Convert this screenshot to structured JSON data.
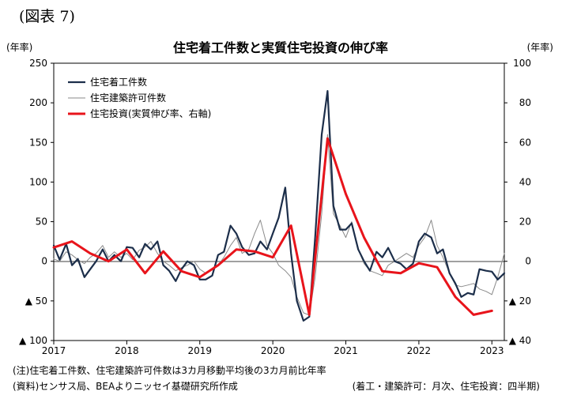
{
  "figure_label": "(図表 7)",
  "notes": {
    "note": "(注)住宅着工件数、住宅建築許可件数は3カ月移動平均後の3カ月前比年率",
    "source": "(資料)センサス局、BEAよりニッセイ基礎研究所作成",
    "frequency": "(着工・建築許可：月次、住宅投資：四半期)"
  },
  "chart_data": {
    "type": "line",
    "title": "住宅着工件数と実質住宅投資の伸び率",
    "y_left": {
      "unit": "(年率)",
      "lim": [
        -100,
        250
      ],
      "ticks": [
        250,
        200,
        150,
        100,
        50,
        0,
        -50,
        -100
      ],
      "tick_labels": [
        "250",
        "200",
        "150",
        "100",
        "50",
        "0",
        "▲ 50",
        "▲ 100"
      ]
    },
    "y_right": {
      "unit": "(年率)",
      "lim": [
        -40,
        100
      ],
      "ticks": [
        100,
        80,
        60,
        40,
        20,
        0,
        -20,
        -40
      ],
      "tick_labels": [
        "100",
        "80",
        "60",
        "40",
        "20",
        "0",
        "▲ 20",
        "▲ 40"
      ]
    },
    "x_ticks": [
      "2017",
      "2018",
      "2019",
      "2020",
      "2021",
      "2022",
      "2023"
    ],
    "x_range": [
      2017,
      2023.17
    ],
    "grid": false,
    "legend_position": "top-left",
    "series": [
      {
        "name": "住宅着工件数",
        "axis": "left",
        "color": "#1c2e4a",
        "width": 2.2,
        "x": [
          2017.0,
          2017.08,
          2017.17,
          2017.25,
          2017.33,
          2017.42,
          2017.5,
          2017.58,
          2017.67,
          2017.75,
          2017.83,
          2017.92,
          2018.0,
          2018.08,
          2018.17,
          2018.25,
          2018.33,
          2018.42,
          2018.5,
          2018.58,
          2018.67,
          2018.75,
          2018.83,
          2018.92,
          2019.0,
          2019.08,
          2019.17,
          2019.25,
          2019.33,
          2019.42,
          2019.5,
          2019.58,
          2019.67,
          2019.75,
          2019.83,
          2019.92,
          2020.0,
          2020.08,
          2020.17,
          2020.25,
          2020.33,
          2020.42,
          2020.5,
          2020.58,
          2020.67,
          2020.75,
          2020.83,
          2020.92,
          2021.0,
          2021.08,
          2021.17,
          2021.25,
          2021.33,
          2021.42,
          2021.5,
          2021.58,
          2021.67,
          2021.75,
          2021.83,
          2021.92,
          2022.0,
          2022.08,
          2022.17,
          2022.25,
          2022.33,
          2022.42,
          2022.5,
          2022.58,
          2022.67,
          2022.75,
          2022.83,
          2022.92,
          2023.0,
          2023.08,
          2023.17
        ],
        "y": [
          20,
          2,
          22,
          -5,
          3,
          -20,
          -10,
          0,
          15,
          0,
          8,
          0,
          18,
          17,
          5,
          22,
          15,
          25,
          -5,
          -12,
          -25,
          -10,
          0,
          -5,
          -23,
          -23,
          -18,
          8,
          12,
          45,
          35,
          18,
          8,
          10,
          25,
          15,
          35,
          55,
          93,
          10,
          -50,
          -75,
          -70,
          30,
          160,
          215,
          70,
          40,
          40,
          48,
          15,
          0,
          -12,
          12,
          5,
          17,
          0,
          -3,
          -10,
          -3,
          25,
          35,
          30,
          10,
          15,
          -15,
          -28,
          -45,
          -40,
          -42,
          -10,
          -12,
          -13,
          -23,
          -15
        ]
      },
      {
        "name": "住宅建築許可件数",
        "axis": "left",
        "color": "#8a8a8a",
        "width": 1.0,
        "x": [
          2017.0,
          2017.08,
          2017.17,
          2017.25,
          2017.33,
          2017.42,
          2017.5,
          2017.58,
          2017.67,
          2017.75,
          2017.83,
          2017.92,
          2018.0,
          2018.08,
          2018.17,
          2018.25,
          2018.33,
          2018.42,
          2018.5,
          2018.58,
          2018.67,
          2018.75,
          2018.83,
          2018.92,
          2019.0,
          2019.08,
          2019.17,
          2019.25,
          2019.33,
          2019.42,
          2019.5,
          2019.58,
          2019.67,
          2019.75,
          2019.83,
          2019.92,
          2020.0,
          2020.08,
          2020.17,
          2020.25,
          2020.33,
          2020.42,
          2020.5,
          2020.58,
          2020.67,
          2020.75,
          2020.83,
          2020.92,
          2021.0,
          2021.08,
          2021.17,
          2021.25,
          2021.33,
          2021.42,
          2021.5,
          2021.58,
          2021.67,
          2021.75,
          2021.83,
          2021.92,
          2022.0,
          2022.08,
          2022.17,
          2022.25,
          2022.33,
          2022.42,
          2022.5,
          2022.58,
          2022.67,
          2022.75,
          2022.83,
          2022.92,
          2023.0,
          2023.08,
          2023.17
        ],
        "y": [
          3,
          0,
          12,
          8,
          2,
          -3,
          5,
          10,
          20,
          5,
          12,
          5,
          10,
          2,
          14,
          18,
          25,
          10,
          0,
          -5,
          -12,
          -8,
          -5,
          0,
          -10,
          -15,
          -10,
          -5,
          5,
          20,
          30,
          10,
          15,
          35,
          52,
          20,
          10,
          -5,
          -12,
          -20,
          -45,
          -65,
          -68,
          -20,
          60,
          160,
          60,
          45,
          30,
          50,
          15,
          -3,
          -12,
          -15,
          -18,
          -5,
          0,
          5,
          10,
          5,
          20,
          30,
          52,
          20,
          5,
          -15,
          -30,
          -32,
          -30,
          -28,
          -35,
          -38,
          -42,
          -20,
          10
        ]
      },
      {
        "name": "住宅投資(実質伸び率、右軸)",
        "axis": "right",
        "color": "#e8141b",
        "width": 3.0,
        "x": [
          2017.0,
          2017.25,
          2017.5,
          2017.75,
          2018.0,
          2018.25,
          2018.5,
          2018.75,
          2019.0,
          2019.25,
          2019.5,
          2019.75,
          2020.0,
          2020.25,
          2020.5,
          2020.75,
          2021.0,
          2021.25,
          2021.5,
          2021.75,
          2022.0,
          2022.25,
          2022.5,
          2022.75,
          2023.0
        ],
        "y": [
          7,
          10,
          4,
          0,
          6,
          -6,
          5,
          -5,
          -8,
          -2,
          6,
          5,
          2,
          18,
          -27,
          62,
          34,
          12,
          -5,
          -6,
          -1,
          -3,
          -18,
          -27,
          -25
        ]
      }
    ]
  }
}
